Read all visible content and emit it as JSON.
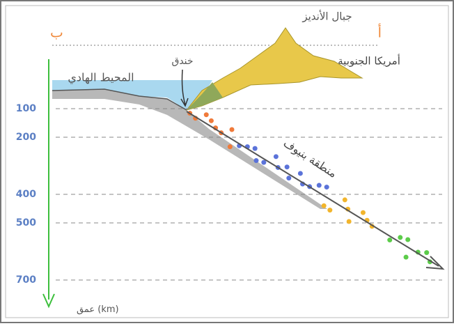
{
  "labels": {
    "point_b": "ب",
    "point_a": "أ",
    "mountains": "جبال الأنديز",
    "continent": "أمريكا الجنوبية",
    "ocean": "المحيط الهادي",
    "trench": "خندق",
    "benioff": "منطقة بنيوف"
  },
  "depth_axis": {
    "label": "عمق (km)",
    "ticks": [
      100,
      200,
      400,
      500,
      700
    ]
  }
}
